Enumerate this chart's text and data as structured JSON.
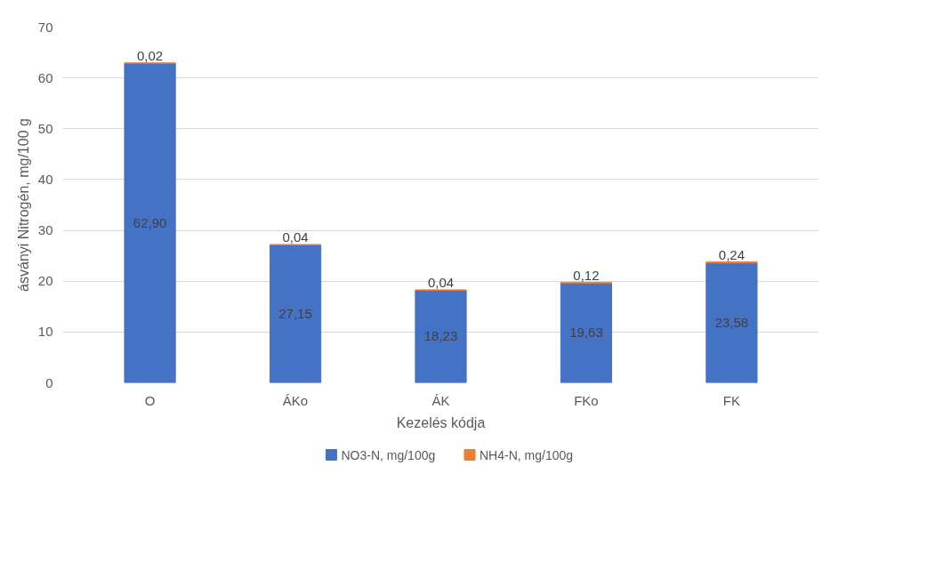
{
  "chart_data": {
    "type": "bar",
    "stacked": true,
    "xlabel": "Kezelés kódja",
    "ylabel": "ásványi Nitrogén, mg/100 g",
    "categories": [
      "O",
      "ÁKo",
      "ÁK",
      "FKo",
      "FK"
    ],
    "series": [
      {
        "name": "NO3-N, mg/100g",
        "color": "#4472c4",
        "values": [
          62.9,
          27.15,
          18.23,
          19.63,
          23.58
        ],
        "value_labels": [
          "62,90",
          "27,15",
          "18,23",
          "19,63",
          "23,58"
        ]
      },
      {
        "name": "NH4-N, mg/100g",
        "color": "#ed7d31",
        "values": [
          0.02,
          0.04,
          0.04,
          0.12,
          0.24
        ],
        "value_labels": [
          "0,02",
          "0,04",
          "0,04",
          "0,12",
          "0,24"
        ]
      }
    ],
    "ylim": [
      0,
      70
    ],
    "yticks": [
      0,
      10,
      20,
      30,
      40,
      50,
      60,
      70
    ],
    "grid": "y",
    "legend": "bottom"
  }
}
